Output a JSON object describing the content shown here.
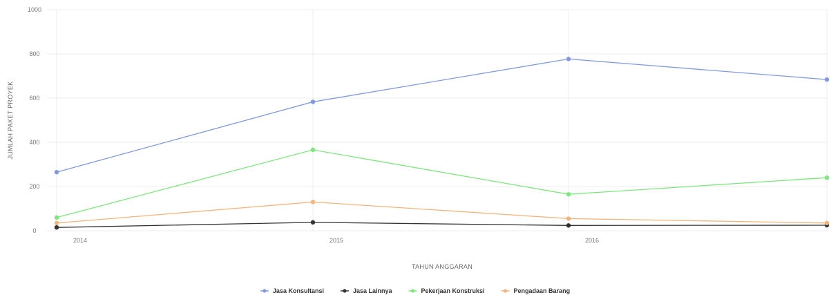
{
  "chart_data": {
    "type": "line",
    "xlabel": "TAHUN ANGGARAN",
    "ylabel": "JUMLAH PAKET PROYEK",
    "x": [
      "2014",
      "2015",
      "2016",
      "2017"
    ],
    "x_tick_labels": [
      "2014",
      "2015",
      "2016",
      ""
    ],
    "ylim": [
      0,
      1000
    ],
    "yticks": [
      0,
      200,
      400,
      600,
      800,
      1000
    ],
    "grid": true,
    "legend_position": "bottom",
    "series": [
      {
        "name": "Jasa Konsultansi",
        "color": "#7f99e3",
        "values": [
          265,
          583,
          777,
          684
        ]
      },
      {
        "name": "Jasa Lainnya",
        "color": "#333333",
        "values": [
          15,
          38,
          24,
          25
        ]
      },
      {
        "name": "Pekerjaan Konstruksi",
        "color": "#7be87b",
        "values": [
          60,
          366,
          165,
          240
        ]
      },
      {
        "name": "Pengadaan Barang",
        "color": "#f4b37a",
        "values": [
          35,
          130,
          55,
          35
        ]
      }
    ]
  }
}
